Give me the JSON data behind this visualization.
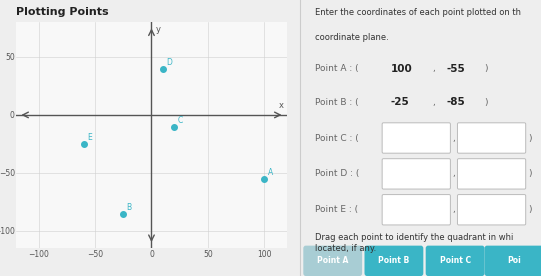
{
  "title": "Plotting Points",
  "xlim": [
    -120,
    120
  ],
  "ylim": [
    -115,
    80
  ],
  "xticks": [
    -100,
    -50,
    0,
    50,
    100
  ],
  "yticks": [
    -100,
    -50,
    0,
    50
  ],
  "grid_color": "#d0d0d0",
  "axis_color": "#555555",
  "bg_color": "#eeeeee",
  "plot_bg": "#f8f8f8",
  "point_color": "#3ab5c6",
  "points": {
    "A": [
      100,
      -55
    ],
    "B": [
      -25,
      -85
    ],
    "C": [
      20,
      -10
    ],
    "D": [
      10,
      40
    ],
    "E": [
      -60,
      -25
    ]
  },
  "right_panel_bg": "#f0f4f8",
  "title_color": "#222222",
  "label_color": "#555555",
  "panel_title_line1": "Enter the coordinates of each point plotted on th",
  "panel_title_line2": "coordinate plane.",
  "known_points_ordered": [
    [
      "A",
      100,
      -55
    ],
    [
      "B",
      -25,
      -85
    ]
  ],
  "unknown_points": [
    "C",
    "D",
    "E"
  ],
  "button_labels": [
    "Point A",
    "Point B",
    "Point C",
    "Poi"
  ],
  "button_colors": [
    "#a8cdd4",
    "#3ab5c6",
    "#3ab5c6",
    "#3ab5c6"
  ]
}
